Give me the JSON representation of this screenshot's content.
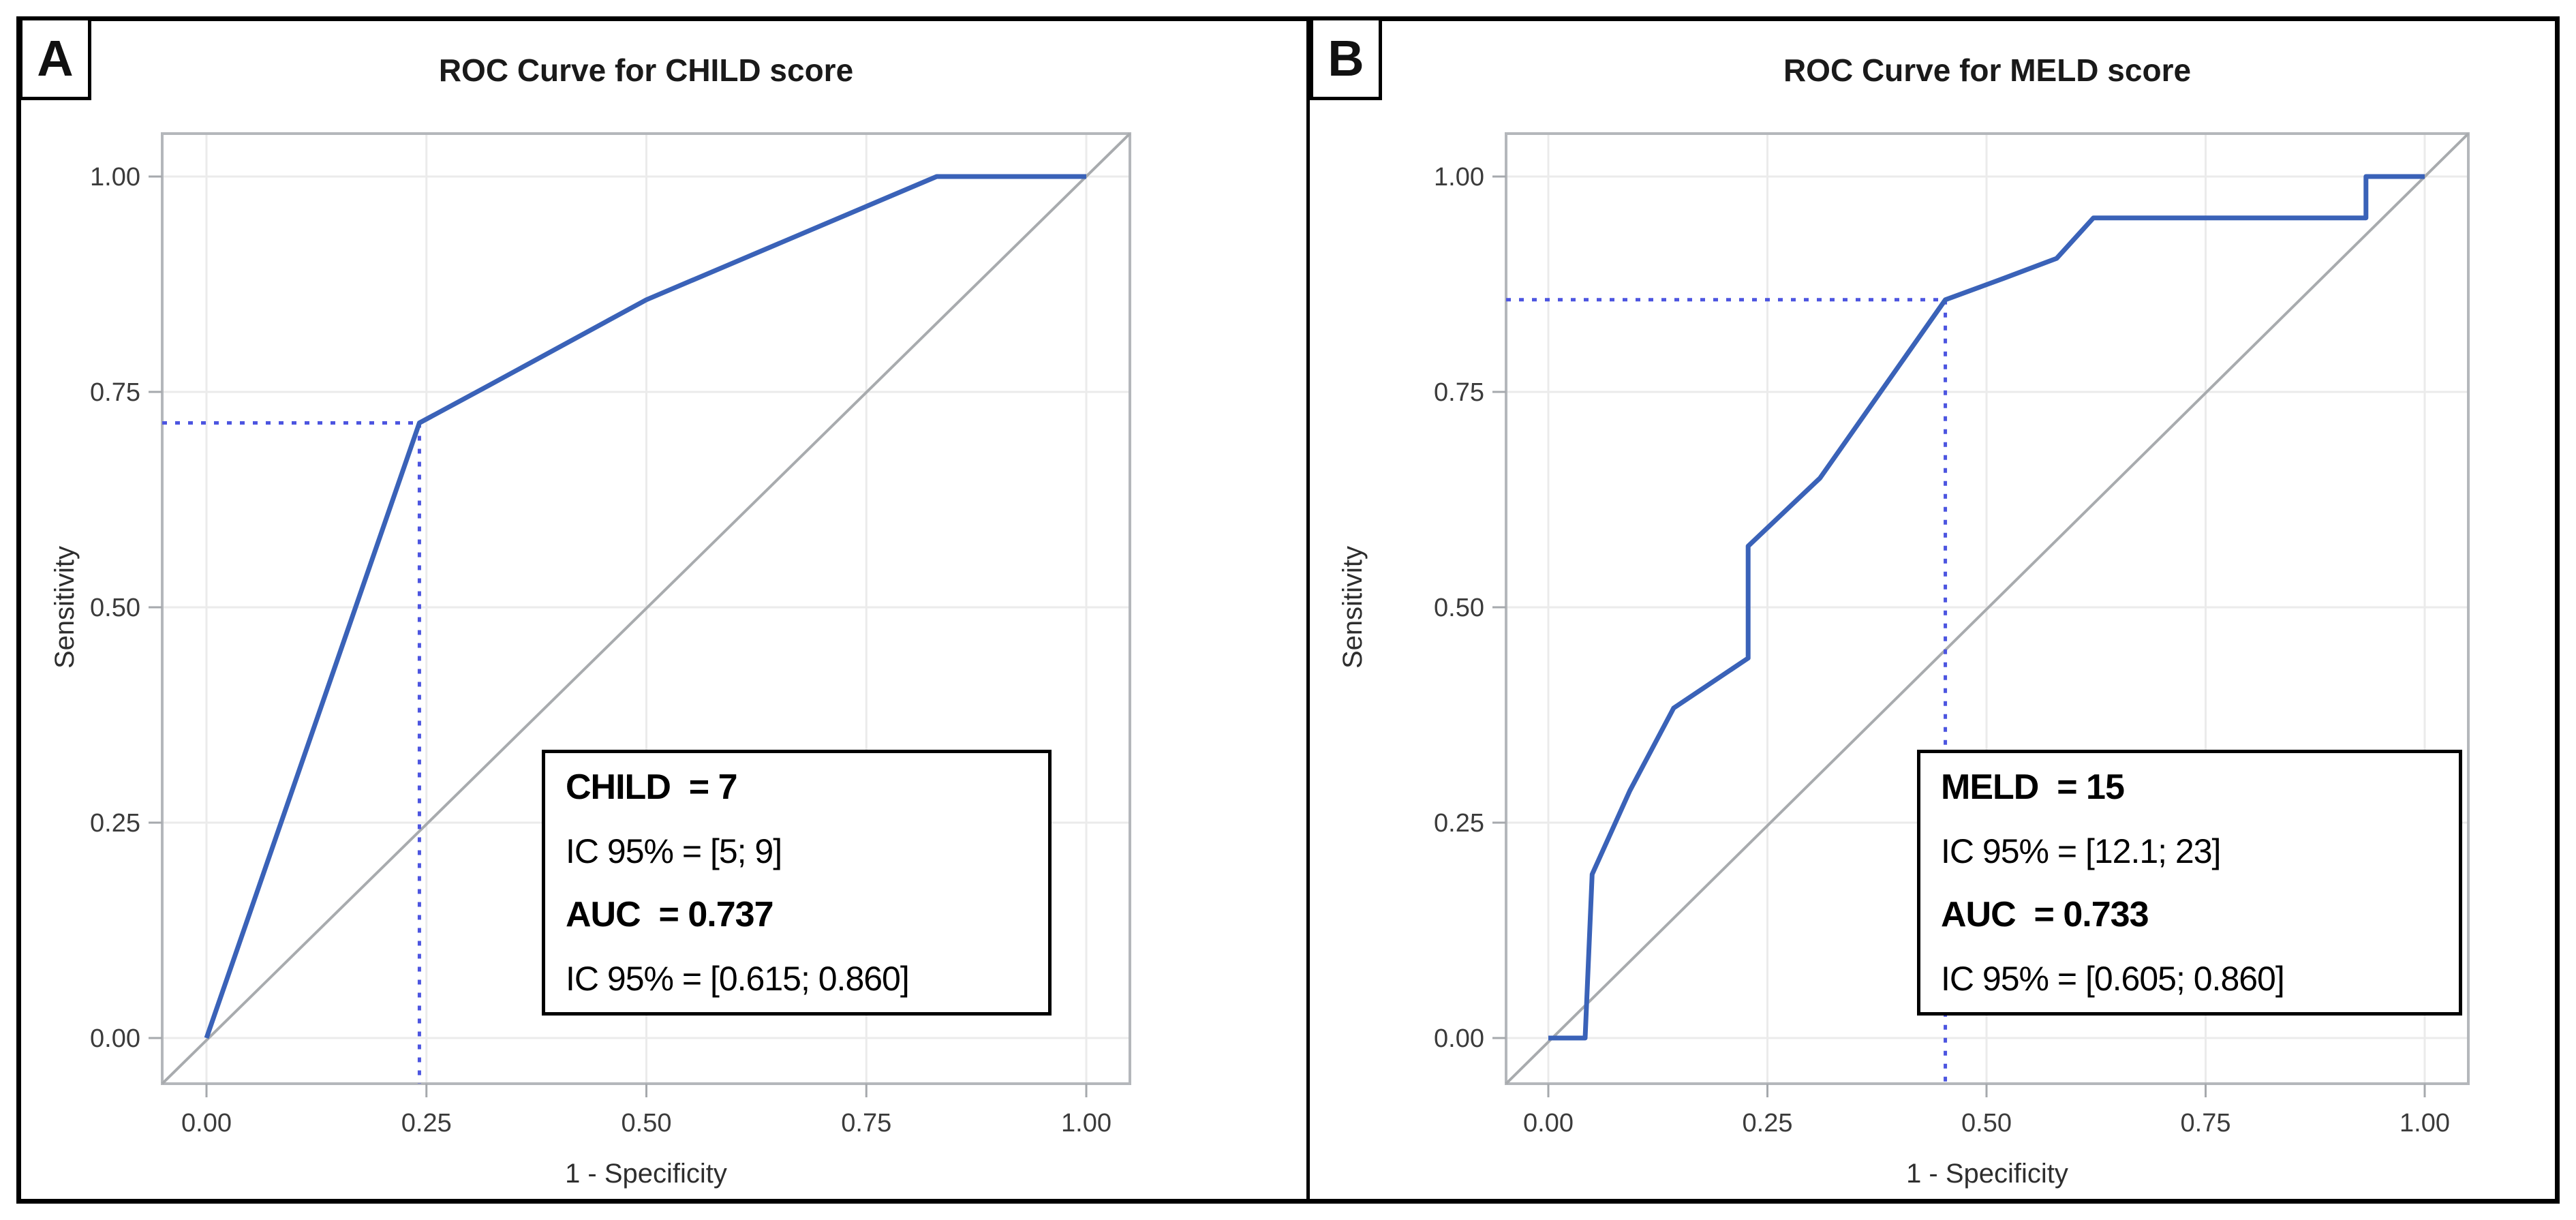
{
  "figure": {
    "panels": [
      {
        "label": "A",
        "title": "ROC Curve for CHILD score",
        "xlabel": "1 - Specificity",
        "ylabel": "Sensitivity",
        "xtick_labels": [
          "0.00",
          "0.25",
          "0.50",
          "0.75",
          "1.00"
        ],
        "ytick_labels": [
          "0.00",
          "0.25",
          "0.50",
          "0.75",
          "1.00"
        ],
        "annotation": {
          "lines": [
            {
              "text": "CHILD  = 7",
              "bold": true
            },
            {
              "text": "IC 95% = [5; 9]",
              "bold": false
            },
            {
              "text": "AUC  = 0.737",
              "bold": true
            },
            {
              "text": "IC 95% = [0.615; 0.860]",
              "bold": false
            }
          ]
        }
      },
      {
        "label": "B",
        "title": "ROC Curve for MELD score",
        "xlabel": "1 - Specificity",
        "ylabel": "Sensitivity",
        "xtick_labels": [
          "0.00",
          "0.25",
          "0.50",
          "0.75",
          "1.00"
        ],
        "ytick_labels": [
          "0.00",
          "0.25",
          "0.50",
          "0.75",
          "1.00"
        ],
        "annotation": {
          "lines": [
            {
              "text": "MELD  = 15",
              "bold": true
            },
            {
              "text": "IC 95% = [12.1; 23]",
              "bold": false
            },
            {
              "text": "AUC  = 0.733",
              "bold": true
            },
            {
              "text": "IC 95% = [0.605; 0.860]",
              "bold": false
            }
          ]
        }
      }
    ]
  },
  "chart_data": [
    {
      "type": "line",
      "title": "ROC Curve for CHILD score",
      "xlabel": "1 - Specificity",
      "ylabel": "Sensitivity",
      "xlim": [
        -0.05,
        1.05
      ],
      "ylim": [
        -0.05,
        1.05
      ],
      "xticks": [
        0,
        0.25,
        0.5,
        0.75,
        1.0
      ],
      "yticks": [
        0,
        0.25,
        0.5,
        0.75,
        1.0
      ],
      "grid": true,
      "legend_position": "none",
      "series": [
        {
          "name": "ROC curve CHILD",
          "color": "#3a62b8",
          "points": [
            [
              0,
              0
            ],
            [
              0.242,
              0.714
            ],
            [
              0.32,
              0.757
            ],
            [
              0.5,
              0.857
            ],
            [
              0.83,
              1.0
            ],
            [
              1.0,
              1.0
            ]
          ]
        },
        {
          "name": "reference diagonal",
          "color": "#a8abae",
          "points": [
            [
              -0.05,
              -0.05
            ],
            [
              1.05,
              1.05
            ]
          ]
        }
      ],
      "cutoff_marker": {
        "x": 0.242,
        "y": 0.714,
        "style": "dotted",
        "color": "#4c55e0"
      },
      "stats": {
        "score_label": "CHILD",
        "score_value": "7",
        "score_ci_95": "[5; 9]",
        "auc": "0.737",
        "auc_ci_95": "[0.615; 0.860]"
      }
    },
    {
      "type": "line",
      "title": "ROC Curve for MELD score",
      "xlabel": "1 - Specificity",
      "ylabel": "Sensitivity",
      "xlim": [
        -0.05,
        1.05
      ],
      "ylim": [
        -0.05,
        1.05
      ],
      "xticks": [
        0,
        0.25,
        0.5,
        0.75,
        1.0
      ],
      "yticks": [
        0,
        0.25,
        0.5,
        0.75,
        1.0
      ],
      "grid": true,
      "legend_position": "none",
      "series": [
        {
          "name": "ROC curve MELD",
          "color": "#3a62b8",
          "points": [
            [
              0,
              0
            ],
            [
              0.042,
              0
            ],
            [
              0.05,
              0.19
            ],
            [
              0.093,
              0.287
            ],
            [
              0.143,
              0.383
            ],
            [
              0.228,
              0.441
            ],
            [
              0.228,
              0.571
            ],
            [
              0.31,
              0.65
            ],
            [
              0.453,
              0.857
            ],
            [
              0.52,
              0.882
            ],
            [
              0.58,
              0.905
            ],
            [
              0.622,
              0.952
            ],
            [
              0.933,
              0.952
            ],
            [
              0.933,
              1.0
            ],
            [
              1.0,
              1.0
            ]
          ]
        },
        {
          "name": "reference diagonal",
          "color": "#a8abae",
          "points": [
            [
              -0.05,
              -0.05
            ],
            [
              1.05,
              1.05
            ]
          ]
        }
      ],
      "cutoff_marker": {
        "x": 0.453,
        "y": 0.857,
        "style": "dotted",
        "color": "#4c55e0"
      },
      "stats": {
        "score_label": "MELD",
        "score_value": "15",
        "score_ci_95": "[12.1; 23]",
        "auc": "0.733",
        "auc_ci_95": "[0.605; 0.860]"
      }
    }
  ],
  "colors": {
    "roc_curve": "#3a62b8",
    "cutoff_dotted": "#4c55e0",
    "diagonal": "#a8abae",
    "gridline": "#ebebeb",
    "frame": "#b4b7bb",
    "tick": "#a6a9ad",
    "tick_label": "#3b3b3b",
    "border": "#000000",
    "background": "#ffffff"
  }
}
